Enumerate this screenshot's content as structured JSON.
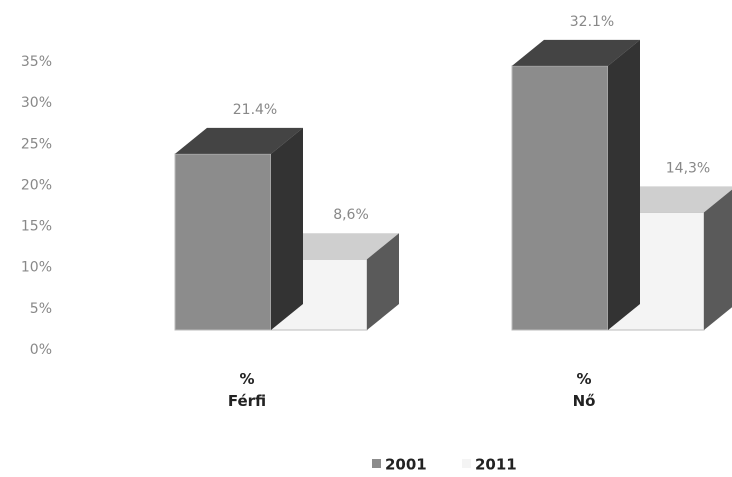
{
  "chart_data": {
    "type": "bar3d",
    "categories": [
      "%\nFérfi",
      "%\nNő"
    ],
    "series": [
      {
        "name": "2001",
        "color": "#8c8c8c",
        "values": [
          21.4,
          32.1
        ],
        "value_labels": [
          "21.4%",
          "32.1%"
        ]
      },
      {
        "name": "2011",
        "color": "#f4f4f4",
        "values": [
          8.6,
          14.3
        ],
        "value_labels": [
          "8,6%",
          "14,3%"
        ]
      }
    ],
    "ylim": [
      0,
      35
    ],
    "yticks": [
      {
        "value": 0,
        "label": "0%"
      },
      {
        "value": 5,
        "label": "5%"
      },
      {
        "value": 10,
        "label": "10%"
      },
      {
        "value": 15,
        "label": "15%"
      },
      {
        "value": 20,
        "label": "20%"
      },
      {
        "value": 25,
        "label": "25%"
      },
      {
        "value": 30,
        "label": "30%"
      },
      {
        "value": 35,
        "label": "35%"
      }
    ]
  }
}
